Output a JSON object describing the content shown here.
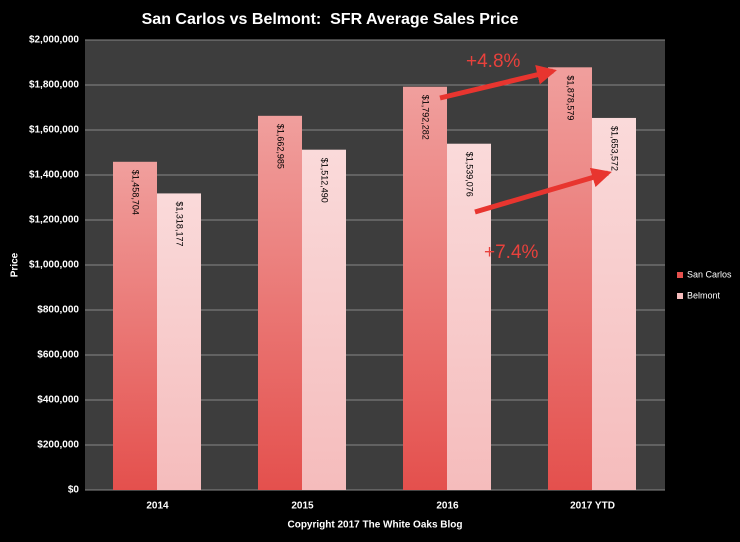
{
  "chart_data": {
    "type": "bar",
    "title": "San Carlos vs Belmont:  SFR Average Sales Price",
    "y_label": "Price",
    "x_label": "Copyright 2017 The White Oaks Blog",
    "categories": [
      "2014",
      "2015",
      "2016",
      "2017 YTD"
    ],
    "series": [
      {
        "name": "San Carlos",
        "color": "#e4504d",
        "values": [
          1458704,
          1662985,
          1792282,
          1878579
        ],
        "value_labels": [
          "$1,458,704",
          "$1,662,985",
          "$1,792,282",
          "$1,878,579"
        ]
      },
      {
        "name": "Belmont",
        "color": "#f5bcbc",
        "values": [
          1318177,
          1512490,
          1539076,
          1653572
        ],
        "value_labels": [
          "$1,318,177",
          "$1,512,490",
          "$1,539,076",
          "$1,653,572"
        ]
      }
    ],
    "ylim": [
      0,
      2000000
    ],
    "yticks": [
      {
        "value": 0,
        "label": "$0"
      },
      {
        "value": 200000,
        "label": "$200,000"
      },
      {
        "value": 400000,
        "label": "$400,000"
      },
      {
        "value": 600000,
        "label": "$600,000"
      },
      {
        "value": 800000,
        "label": "$800,000"
      },
      {
        "value": 1000000,
        "label": "$1,000,000"
      },
      {
        "value": 1200000,
        "label": "$1,200,000"
      },
      {
        "value": 1400000,
        "label": "$1,400,000"
      },
      {
        "value": 1600000,
        "label": "$1,600,000"
      },
      {
        "value": 1800000,
        "label": "$1,800,000"
      },
      {
        "value": 2000000,
        "label": "$2,000,000"
      }
    ],
    "grid": true,
    "legend": "right",
    "annotations": [
      "+4.8%",
      "+7.4%"
    ]
  }
}
